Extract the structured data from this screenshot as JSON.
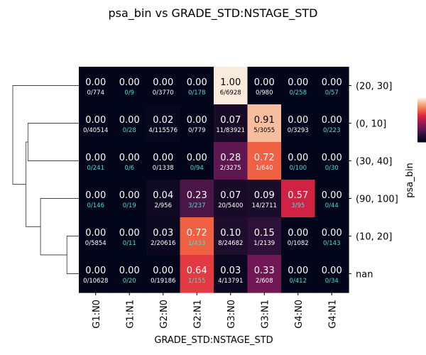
{
  "chart_data": {
    "type": "heatmap",
    "title": "psa_bin vs GRADE_STD:NSTAGE_STD",
    "xlabel": "GRADE_STD:NSTAGE_STD",
    "ylabel": "psa_bin",
    "columns": [
      "G1:N0",
      "G1:N1",
      "G2:N0",
      "G2:N1",
      "G3:N0",
      "G3:N1",
      "G4:N0",
      "G4:N1"
    ],
    "rows": [
      "(20, 30]",
      "(0, 10]",
      "(30, 40]",
      "(90, 100]",
      "(10, 20]",
      "nan"
    ],
    "values": [
      [
        "0.00",
        "0.00",
        "0.00",
        "0.00",
        "1.00",
        "0.00",
        "0.00",
        "0.00"
      ],
      [
        "0.00",
        "0.00",
        "0.02",
        "0.00",
        "0.07",
        "0.91",
        "0.00",
        "0.00"
      ],
      [
        "0.00",
        "0.00",
        "0.00",
        "0.00",
        "0.28",
        "0.72",
        "0.00",
        "0.00"
      ],
      [
        "0.00",
        "0.00",
        "0.04",
        "0.23",
        "0.07",
        "0.09",
        "0.57",
        "0.00"
      ],
      [
        "0.00",
        "0.00",
        "0.03",
        "0.72",
        "0.10",
        "0.15",
        "0.00",
        "0.00"
      ],
      [
        "0.00",
        "0.00",
        "0.00",
        "0.64",
        "0.03",
        "0.33",
        "0.00",
        "0.00"
      ]
    ],
    "counts": [
      [
        "0/774",
        "0/9",
        "0/3770",
        "0/178",
        "6/6928",
        "0/980",
        "0/258",
        "0/57"
      ],
      [
        "0/40514",
        "0/28",
        "4/115576",
        "0/779",
        "11/83921",
        "5/3055",
        "0/3293",
        "0/223"
      ],
      [
        "0/241",
        "0/6",
        "0/1338",
        "0/94",
        "2/3275",
        "1/640",
        "0/100",
        "0/30"
      ],
      [
        "0/146",
        "0/19",
        "2/956",
        "3/237",
        "20/5400",
        "14/2711",
        "3/95",
        "0/44"
      ],
      [
        "0/5854",
        "0/11",
        "2/20616",
        "1/433",
        "8/24682",
        "1/2139",
        "0/1082",
        "0/143"
      ],
      [
        "0/10628",
        "0/20",
        "0/19186",
        "1/155",
        "4/13791",
        "2/608",
        "0/412",
        "0/34"
      ]
    ],
    "count_highlight": [
      [
        false,
        true,
        false,
        true,
        false,
        false,
        true,
        true
      ],
      [
        false,
        true,
        false,
        false,
        false,
        false,
        false,
        true
      ],
      [
        true,
        true,
        false,
        true,
        false,
        false,
        true,
        true
      ],
      [
        true,
        true,
        false,
        true,
        false,
        false,
        true,
        true
      ],
      [
        false,
        true,
        false,
        true,
        false,
        false,
        false,
        true
      ],
      [
        false,
        true,
        false,
        true,
        false,
        false,
        true,
        true
      ]
    ],
    "colormap": "rocket",
    "vmin": 0,
    "vmax": 1,
    "dendrogram": "rows, left",
    "colorbar": "right, top",
    "colors": {
      "highlight_count": "#40e0d0",
      "normal_text": "#ffffff",
      "dark_text": "#000000"
    }
  }
}
